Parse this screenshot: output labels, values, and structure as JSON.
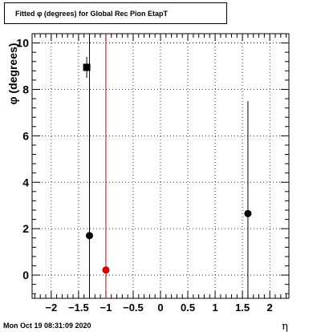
{
  "title": "Fitted φ (degrees) for Global Rec Pion EtapT",
  "timestamp": "Mon Oct 19 08:31:09 2020",
  "chart_data": {
    "type": "scatter",
    "title": "Fitted φ (degrees) for Global Rec Pion EtapT",
    "xlabel": "η",
    "ylabel": "φ (degrees)",
    "xlim": [
      -2.35,
      2.35
    ],
    "ylim": [
      -1.0,
      10.4
    ],
    "xticks": [
      -2,
      -1.5,
      -1,
      -0.5,
      0,
      0.5,
      1,
      1.5,
      2
    ],
    "xtick_labels": [
      "−2",
      "−1.5",
      "−1",
      "−0.5",
      "0",
      "0.5",
      "1",
      "1.5",
      "2"
    ],
    "yticks": [
      0,
      2,
      4,
      6,
      8,
      10
    ],
    "ytick_labels": [
      "0",
      "2",
      "4",
      "6",
      "8",
      "10"
    ],
    "grid": true,
    "points": [
      {
        "x": -1.35,
        "y": 8.95,
        "yerr_low": 8.5,
        "yerr_high": 9.4,
        "marker": "square",
        "color": "#000000"
      },
      {
        "x": -1.3,
        "y": 1.7,
        "yerr_low": -1.0,
        "yerr_high": 10.4,
        "marker": "circle",
        "color": "#000000"
      },
      {
        "x": -1.0,
        "y": 0.22,
        "yerr_low": -1.0,
        "yerr_high": 10.4,
        "marker": "circle",
        "color": "#dd0000"
      },
      {
        "x": 1.6,
        "y": 2.65,
        "yerr_low": -1.0,
        "yerr_high": 7.5,
        "marker": "circle",
        "color": "#000000"
      }
    ]
  }
}
